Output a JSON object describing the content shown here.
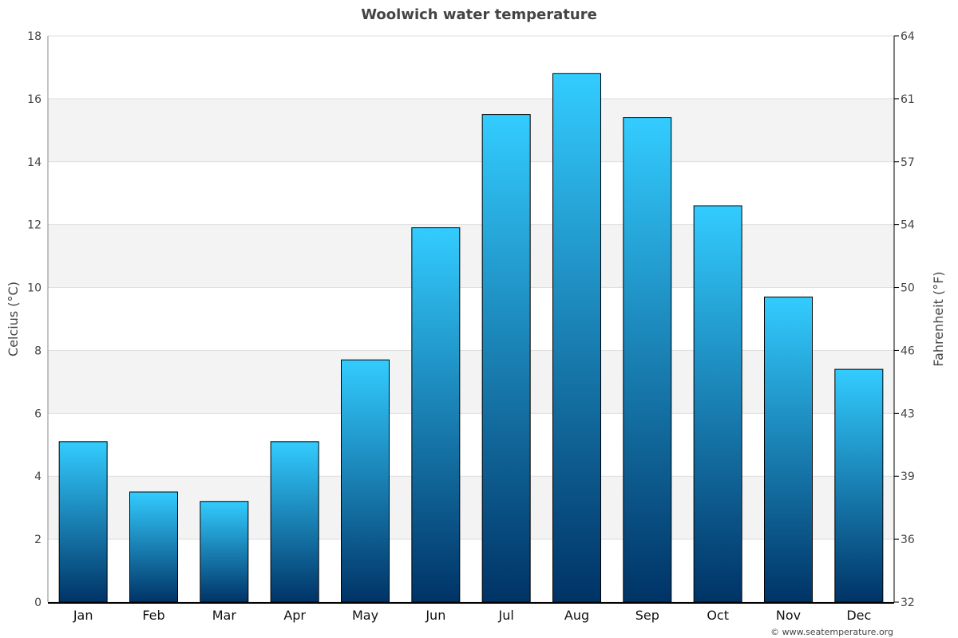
{
  "chart_data": {
    "type": "bar",
    "title": "Woolwich water temperature",
    "ylabel": "Celcius (°C)",
    "y2label": "Fahrenheit (°F)",
    "categories": [
      "Jan",
      "Feb",
      "Mar",
      "Apr",
      "May",
      "Jun",
      "Jul",
      "Aug",
      "Sep",
      "Oct",
      "Nov",
      "Dec"
    ],
    "values": [
      5.1,
      3.5,
      3.2,
      5.1,
      7.7,
      11.9,
      15.5,
      16.8,
      15.4,
      12.6,
      9.7,
      7.4
    ],
    "ylim": [
      0,
      18
    ],
    "yticks": [
      0,
      2,
      4,
      6,
      8,
      10,
      12,
      14,
      16,
      18
    ],
    "y2ticks": [
      "32",
      "36",
      "39",
      "43",
      "46",
      "50",
      "54",
      "57",
      "61",
      "64"
    ],
    "grid": true,
    "colors": {
      "bar_top": "#33ccff",
      "bar_bottom": "#003366",
      "band": "#f3f3f3"
    }
  },
  "credit": "© www.seatemperature.org"
}
